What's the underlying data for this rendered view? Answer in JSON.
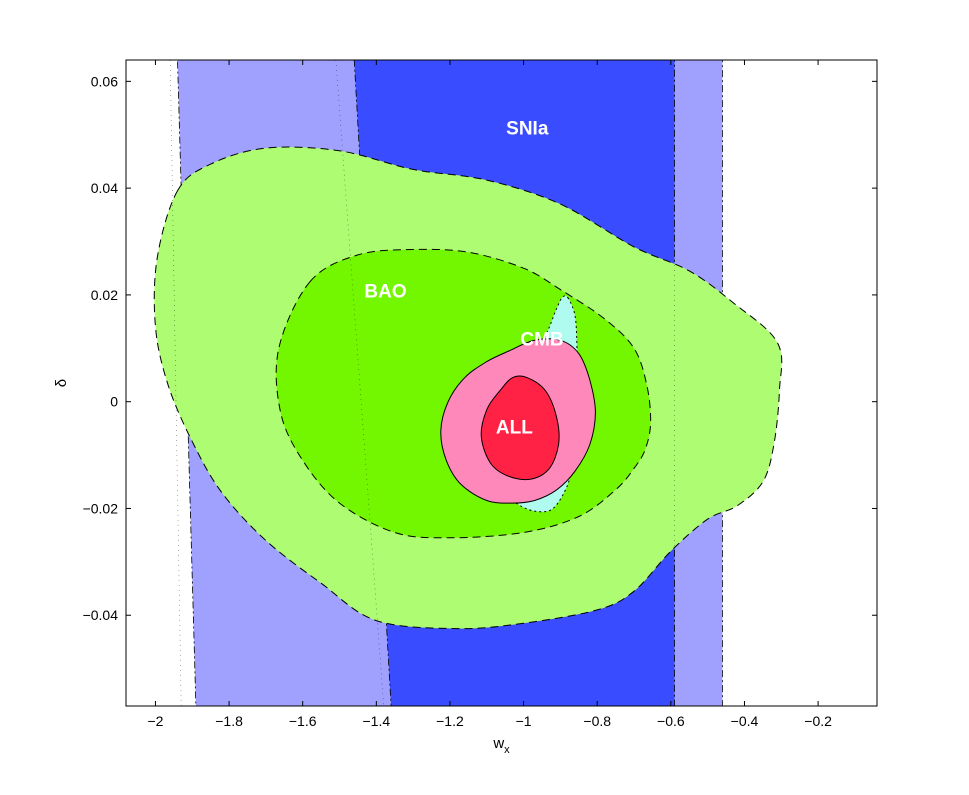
{
  "chart_data": {
    "type": "contour",
    "xlabel": "w",
    "xlabel_sub": "x",
    "ylabel": "δ",
    "xlim": [
      -2.08,
      -0.04
    ],
    "ylim": [
      -0.057,
      0.064
    ],
    "x_ticks": [
      -2,
      -1.8,
      -1.6,
      -1.4,
      -1.2,
      -1,
      -0.8,
      -0.6,
      -0.4,
      -0.2
    ],
    "y_ticks": [
      0.06,
      0.04,
      0.02,
      0,
      -0.02,
      -0.04
    ],
    "x_tick_labels": [
      "−2",
      "−1.8",
      "−1.6",
      "−1.4",
      "−1.2",
      "−1",
      "−0.8",
      "−0.6",
      "−0.4",
      "−0.2"
    ],
    "y_tick_labels": [
      "0.06",
      "0.04",
      "0.02",
      "0",
      "−0.02",
      "−0.04"
    ],
    "colors": {
      "snia_outer": "#a0a0ff",
      "snia_inner": "#3a4cff",
      "bao_outer": "#adfc72",
      "bao_inner": "#73f700",
      "cmb": "#b0fbef",
      "all_outer": "#ff88bb",
      "all_inner": "#ff2244"
    },
    "series": [
      {
        "name": "SNIa",
        "label_at": [
          -0.99,
          0.051
        ],
        "contours": [
          {
            "level": "2sigma",
            "color": "#a0a0ff",
            "line": "dashdot",
            "points": [
              [
                -1.94,
                0.064
              ],
              [
                -0.46,
                0.064
              ],
              [
                -0.46,
                -0.057
              ],
              [
                -1.89,
                -0.057
              ]
            ]
          },
          {
            "level": "1sigma",
            "color": "#3a4cff",
            "line": "dashdot",
            "points": [
              [
                -1.46,
                0.064
              ],
              [
                -0.59,
                0.064
              ],
              [
                -0.59,
                -0.057
              ],
              [
                -1.36,
                -0.057
              ]
            ]
          }
        ]
      },
      {
        "name": "BAO",
        "label_at": [
          -1.375,
          0.0205
        ],
        "contours": [
          {
            "level": "2sigma",
            "color": "#adfc72",
            "line": "dashed",
            "points": [
              [
                -1.94,
                0.0395
              ],
              [
                -1.85,
                0.0445
              ],
              [
                -1.7,
                0.0475
              ],
              [
                -1.5,
                0.047
              ],
              [
                -1.3,
                0.0435
              ],
              [
                -1.1,
                0.0415
              ],
              [
                -0.9,
                0.037
              ],
              [
                -0.7,
                0.029
              ],
              [
                -0.55,
                0.0245
              ],
              [
                -0.43,
                0.0185
              ],
              [
                -0.31,
                0.011
              ],
              [
                -0.305,
                0.002
              ],
              [
                -0.32,
                -0.008
              ],
              [
                -0.35,
                -0.015
              ],
              [
                -0.42,
                -0.0195
              ],
              [
                -0.5,
                -0.022
              ],
              [
                -0.6,
                -0.028
              ],
              [
                -0.7,
                -0.0355
              ],
              [
                -0.8,
                -0.039
              ],
              [
                -1.0,
                -0.0415
              ],
              [
                -1.18,
                -0.0425
              ],
              [
                -1.4,
                -0.041
              ],
              [
                -1.55,
                -0.034
              ],
              [
                -1.7,
                -0.026
              ],
              [
                -1.82,
                -0.017
              ],
              [
                -1.9,
                -0.0075
              ],
              [
                -1.965,
                0.003
              ],
              [
                -2.0,
                0.014
              ],
              [
                -1.995,
                0.027
              ]
            ]
          },
          {
            "level": "1sigma",
            "color": "#73f700",
            "line": "dashed",
            "points": [
              [
                -1.58,
                0.0225
              ],
              [
                -1.45,
                0.0275
              ],
              [
                -1.3,
                0.0285
              ],
              [
                -1.15,
                0.028
              ],
              [
                -1.0,
                0.025
              ],
              [
                -0.9,
                0.021
              ],
              [
                -0.78,
                0.0155
              ],
              [
                -0.7,
                0.01
              ],
              [
                -0.665,
                0.003
              ],
              [
                -0.655,
                -0.004
              ],
              [
                -0.67,
                -0.009
              ],
              [
                -0.7,
                -0.0125
              ],
              [
                -0.75,
                -0.0165
              ],
              [
                -0.85,
                -0.0215
              ],
              [
                -1.0,
                -0.0245
              ],
              [
                -1.2,
                -0.0255
              ],
              [
                -1.35,
                -0.0245
              ],
              [
                -1.5,
                -0.019
              ],
              [
                -1.6,
                -0.011
              ],
              [
                -1.66,
                -0.002
              ],
              [
                -1.665,
                0.01
              ]
            ]
          }
        ]
      },
      {
        "name": "CMB",
        "label_at": [
          -0.95,
          0.0115
        ],
        "contours": [
          {
            "level": "2sigma",
            "color": "#b0fbef",
            "line": "dotted",
            "points": [
              [
                -0.88,
                0.0195
              ],
              [
                -0.86,
                0.016
              ],
              [
                -0.855,
                0.0095
              ],
              [
                -0.855,
                0.002
              ],
              [
                -0.86,
                -0.005
              ],
              [
                -0.87,
                -0.011
              ],
              [
                -0.88,
                -0.0155
              ],
              [
                -0.92,
                -0.02
              ],
              [
                -0.97,
                -0.0205
              ],
              [
                -1.02,
                -0.019
              ],
              [
                -1.05,
                -0.0165
              ],
              [
                -1.06,
                -0.012
              ],
              [
                -1.04,
                -0.004
              ],
              [
                -1.0,
                0.003
              ],
              [
                -0.96,
                0.009
              ],
              [
                -0.93,
                0.014
              ],
              [
                -0.91,
                0.0175
              ],
              [
                -0.895,
                0.0195
              ]
            ]
          }
        ]
      },
      {
        "name": "ALL",
        "label_at": [
          -1.025,
          -0.005
        ],
        "contours": [
          {
            "level": "2sigma",
            "color": "#ff88bb",
            "line": "solid",
            "points": [
              [
                -0.9,
                0.0115
              ],
              [
                -0.85,
                0.009
              ],
              [
                -0.82,
                0.004
              ],
              [
                -0.805,
                -0.002
              ],
              [
                -0.82,
                -0.008
              ],
              [
                -0.86,
                -0.013
              ],
              [
                -0.91,
                -0.0165
              ],
              [
                -0.97,
                -0.0185
              ],
              [
                -1.03,
                -0.019
              ],
              [
                -1.1,
                -0.0185
              ],
              [
                -1.17,
                -0.0155
              ],
              [
                -1.21,
                -0.011
              ],
              [
                -1.225,
                -0.0055
              ],
              [
                -1.205,
                0.0
              ],
              [
                -1.16,
                0.0045
              ],
              [
                -1.1,
                0.0075
              ],
              [
                -1.04,
                0.0095
              ],
              [
                -0.97,
                0.0115
              ]
            ]
          },
          {
            "level": "1sigma",
            "color": "#ff2244",
            "line": "solid",
            "points": [
              [
                -0.99,
                0.0045
              ],
              [
                -0.94,
                0.002
              ],
              [
                -0.91,
                -0.003
              ],
              [
                -0.905,
                -0.008
              ],
              [
                -0.93,
                -0.0125
              ],
              [
                -0.98,
                -0.0145
              ],
              [
                -1.04,
                -0.014
              ],
              [
                -1.09,
                -0.0115
              ],
              [
                -1.115,
                -0.0065
              ],
              [
                -1.1,
                -0.0015
              ],
              [
                -1.065,
                0.002
              ],
              [
                -1.03,
                0.0045
              ]
            ]
          }
        ]
      }
    ],
    "snia_inner_lines": [
      {
        "points": [
          [
            -1.51,
            0.064
          ],
          [
            -1.38,
            -0.057
          ]
        ]
      },
      {
        "points": [
          [
            -0.59,
            0.064
          ],
          [
            -0.59,
            -0.057
          ]
        ]
      },
      {
        "points": [
          [
            -1.96,
            0.064
          ],
          [
            -1.93,
            -0.057
          ]
        ]
      }
    ]
  }
}
